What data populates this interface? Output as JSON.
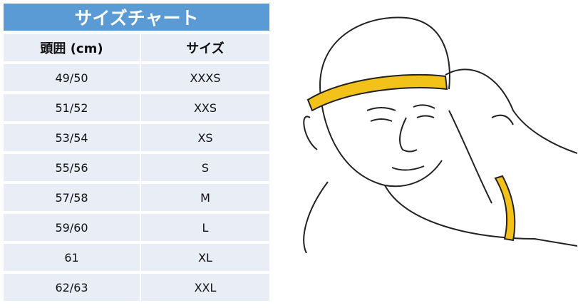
{
  "title": "サイズチャート",
  "headers": [
    "頭囲 (cm)",
    "サイズ"
  ],
  "rows": [
    [
      "49/50",
      "XXXS"
    ],
    [
      "51/52",
      "XXS"
    ],
    [
      "53/54",
      "XS"
    ],
    [
      "55/56",
      "S"
    ],
    [
      "57/58",
      "M"
    ],
    [
      "59/60",
      "L"
    ],
    [
      "61",
      "XL"
    ],
    [
      "62/63",
      "XXL"
    ]
  ],
  "colors": {
    "title_bg": "#5b9bd5",
    "cell_bg": "#e9edf5",
    "tape": "#f2c21b"
  },
  "illustration": "man-measuring-head-with-tape"
}
